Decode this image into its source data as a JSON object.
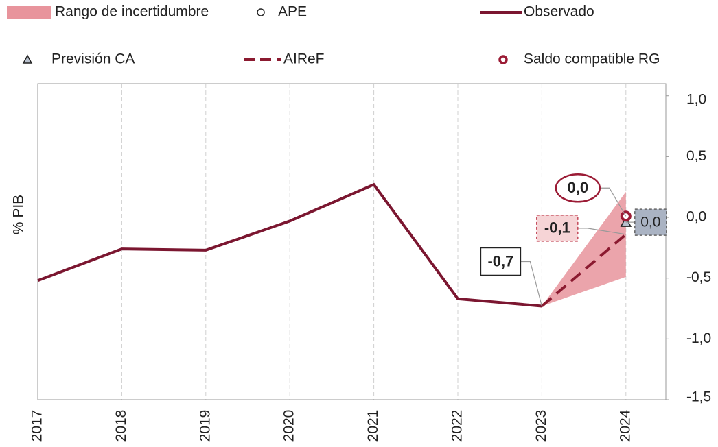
{
  "chart_data": {
    "type": "line",
    "y_label": "% PIB",
    "categories": [
      "2017",
      "2018",
      "2019",
      "2020",
      "2021",
      "2022",
      "2023",
      "2024"
    ],
    "ylim": [
      -1.5,
      1.1
    ],
    "yticks": [
      {
        "value": 1.0,
        "label": "1,0"
      },
      {
        "value": 0.5,
        "label": "0,5"
      },
      {
        "value": 0.0,
        "label": "0,0"
      },
      {
        "value": -0.5,
        "label": "-0,5"
      },
      {
        "value": -1.0,
        "label": "-1,0"
      },
      {
        "value": -1.5,
        "label": "-1,5"
      }
    ],
    "grid": true,
    "series": [
      {
        "name": "Rango de incertidumbre",
        "kind": "band",
        "color": "#e8949c",
        "lower": [
          null,
          null,
          null,
          null,
          null,
          null,
          -0.73,
          -0.49
        ],
        "upper": [
          null,
          null,
          null,
          null,
          null,
          null,
          -0.73,
          0.21
        ]
      },
      {
        "name": "APE",
        "kind": "open-circle",
        "color": "#222222",
        "values": [
          null,
          null,
          null,
          null,
          null,
          null,
          null,
          0.0
        ]
      },
      {
        "name": "Observado",
        "kind": "line",
        "color": "#7b1630",
        "values": [
          -0.52,
          -0.26,
          -0.27,
          -0.03,
          0.27,
          -0.67,
          -0.73,
          null
        ],
        "value_labels": [
          null,
          null,
          null,
          null,
          null,
          null,
          "-0,7",
          null
        ]
      },
      {
        "name": "Previsión CA",
        "kind": "triangle",
        "color": "#222222",
        "values": [
          null,
          null,
          null,
          null,
          null,
          null,
          null,
          -0.04
        ],
        "value_labels": [
          null,
          null,
          null,
          null,
          null,
          null,
          null,
          "0,0"
        ]
      },
      {
        "name": "AIReF",
        "kind": "dashed",
        "color": "#8b1a30",
        "values": [
          null,
          null,
          null,
          null,
          null,
          null,
          -0.73,
          -0.14
        ],
        "value_labels": [
          null,
          null,
          null,
          null,
          null,
          null,
          null,
          "-0,1"
        ]
      },
      {
        "name": "Saldo compatible RG",
        "kind": "ring",
        "color": "#9b1b35",
        "values": [
          null,
          null,
          null,
          null,
          null,
          null,
          null,
          0.01
        ],
        "value_labels": [
          null,
          null,
          null,
          null,
          null,
          null,
          null,
          "0,0"
        ]
      }
    ]
  }
}
